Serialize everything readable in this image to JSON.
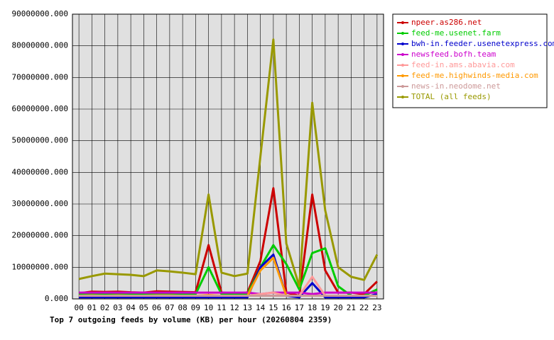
{
  "chart_data": {
    "type": "line",
    "title": "Top 7 outgoing feeds by volume (KB) per hour (20260804 2359)",
    "categories": [
      "00",
      "01",
      "02",
      "03",
      "04",
      "05",
      "06",
      "07",
      "08",
      "09",
      "10",
      "11",
      "12",
      "13",
      "14",
      "15",
      "16",
      "17",
      "18",
      "19",
      "20",
      "21",
      "22",
      "23"
    ],
    "ylim": [
      0,
      90000000
    ],
    "yticks": [
      {
        "value": 0,
        "label": "0.000"
      },
      {
        "value": 10000000,
        "label": "10000000.000"
      },
      {
        "value": 20000000,
        "label": "20000000.000"
      },
      {
        "value": 30000000,
        "label": "30000000.000"
      },
      {
        "value": 40000000,
        "label": "40000000.000"
      },
      {
        "value": 50000000,
        "label": "50000000.000"
      },
      {
        "value": 60000000,
        "label": "60000000.000"
      },
      {
        "value": 70000000,
        "label": "70000000.000"
      },
      {
        "value": 80000000,
        "label": "80000000.000"
      },
      {
        "value": 90000000,
        "label": "90000000.000"
      }
    ],
    "grid": true,
    "legend": "right",
    "series": [
      {
        "name": "npeer.as286.net",
        "color": "#cc0000",
        "values": [
          1800000,
          2300000,
          2200000,
          2300000,
          2100000,
          2000000,
          2400000,
          2300000,
          2200000,
          2100000,
          17000000,
          2000000,
          1800000,
          2000000,
          12000000,
          35000000,
          2000000,
          1000000,
          33000000,
          9000000,
          2000000,
          2000000,
          1500000,
          5500000
        ]
      },
      {
        "name": "feed-me.usenet.farm",
        "color": "#00cc00",
        "values": [
          1500000,
          1600000,
          1500000,
          1600000,
          1500000,
          1500000,
          1600000,
          1600000,
          1500000,
          1500000,
          10000000,
          1500000,
          1400000,
          1500000,
          10000000,
          17000000,
          11000000,
          3000000,
          14500000,
          16000000,
          4000000,
          1000000,
          1000000,
          3000000
        ]
      },
      {
        "name": "bwh-in.feeder.usenetexpress.com",
        "color": "#0000cc",
        "values": [
          500000,
          500000,
          500000,
          500000,
          500000,
          500000,
          500000,
          500000,
          500000,
          500000,
          500000,
          500000,
          500000,
          500000,
          10000000,
          14000000,
          1000000,
          500000,
          5000000,
          500000,
          500000,
          500000,
          500000,
          1500000
        ]
      },
      {
        "name": "newsfeed.bofh.team",
        "color": "#cc00cc",
        "values": [
          2000000,
          2000000,
          2000000,
          2000000,
          2000000,
          2000000,
          2000000,
          2000000,
          2000000,
          2000000,
          2000000,
          2000000,
          2000000,
          2000000,
          1500000,
          2000000,
          2000000,
          2000000,
          1500000,
          2000000,
          2000000,
          2000000,
          2000000,
          2000000
        ]
      },
      {
        "name": "feed-in.ams.abavia.com",
        "color": "#ff9999",
        "values": [
          1000000,
          1000000,
          1000000,
          1000000,
          1000000,
          1000000,
          1000000,
          1000000,
          1000000,
          1000000,
          1200000,
          1000000,
          1000000,
          1000000,
          1500000,
          2000000,
          1000000,
          1000000,
          7000000,
          1000000,
          1000000,
          1000000,
          1000000,
          1000000
        ]
      },
      {
        "name": "feed-me.highwinds-media.com",
        "color": "#ff9900",
        "values": [
          1000000,
          1100000,
          1000000,
          1100000,
          1000000,
          1000000,
          1100000,
          1100000,
          1000000,
          1000000,
          1200000,
          1000000,
          1000000,
          1000000,
          9000000,
          13000000,
          1000000,
          1000000,
          1000000,
          1000000,
          1000000,
          1000000,
          1000000,
          1000000
        ]
      },
      {
        "name": "news-in.neodome.net",
        "color": "#cc9999",
        "values": [
          1000000,
          1000000,
          1000000,
          1000000,
          1000000,
          1000000,
          1000000,
          1000000,
          1000000,
          1000000,
          1000000,
          1000000,
          1000000,
          1000000,
          1000000,
          1000000,
          1000000,
          1000000,
          1000000,
          1000000,
          1000000,
          1000000,
          1000000,
          1000000
        ]
      },
      {
        "name": "TOTAL (all feeds)",
        "color": "#999900",
        "values": [
          6300000,
          7200000,
          8000000,
          7800000,
          7600000,
          7200000,
          9000000,
          8700000,
          8300000,
          7800000,
          33000000,
          8300000,
          7200000,
          8000000,
          45000000,
          82000000,
          17500000,
          4000000,
          62000000,
          28000000,
          10000000,
          7000000,
          6000000,
          14000000
        ]
      }
    ]
  }
}
